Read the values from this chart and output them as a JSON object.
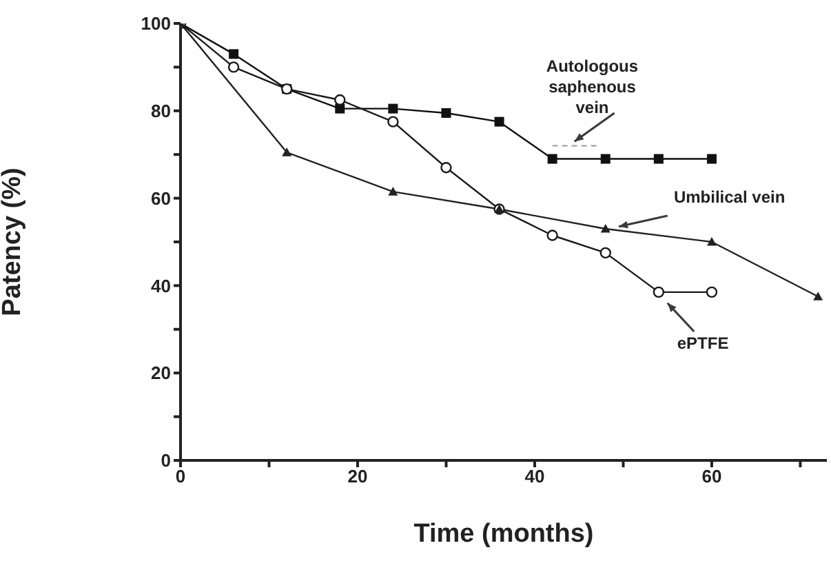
{
  "chart_data": {
    "type": "line",
    "xlabel": "Time (months)",
    "ylabel": "Patency (%)",
    "xlim": [
      0,
      73
    ],
    "xticks": [
      0,
      {
        "value": 10,
        "label": null
      },
      20,
      {
        "value": 30,
        "label": null
      },
      40,
      {
        "value": 50,
        "label": null
      },
      60,
      {
        "value": 70,
        "label": null
      }
    ],
    "ylim": [
      0,
      100
    ],
    "yticks": [
      0,
      {
        "value": 10,
        "label": null
      },
      20,
      {
        "value": 30,
        "label": null
      },
      40,
      {
        "value": 50,
        "label": null
      },
      60,
      {
        "value": 70,
        "label": null
      },
      80,
      {
        "value": 90,
        "label": null
      },
      100
    ],
    "line_style": "solid",
    "series": [
      {
        "color": "#111111",
        "marker": "square",
        "x": [
          0,
          6,
          12,
          18,
          24,
          30,
          36,
          42,
          48,
          54,
          60
        ],
        "values": [
          100,
          93,
          85,
          80.5,
          80.5,
          79.5,
          77.5,
          69,
          69,
          69,
          69
        ]
      },
      {
        "color": "#1a1a1a",
        "marker": "circle",
        "x": [
          0,
          6,
          12,
          18,
          24,
          30,
          36,
          42,
          48,
          54,
          60
        ],
        "values": [
          100,
          90,
          85,
          82.5,
          77.5,
          67,
          57.5,
          51.5,
          47.5,
          38.5,
          38.5
        ]
      },
      {
        "color": "#222222",
        "marker": "triangle",
        "x": [
          0,
          12,
          24,
          36,
          48,
          60,
          72
        ],
        "values": [
          100,
          70.5,
          61.5,
          57.5,
          53,
          50,
          37.5
        ]
      }
    ],
    "annotations": [
      "Autologous saphenous vein",
      "Umbilical vein",
      "ePTFE"
    ]
  }
}
